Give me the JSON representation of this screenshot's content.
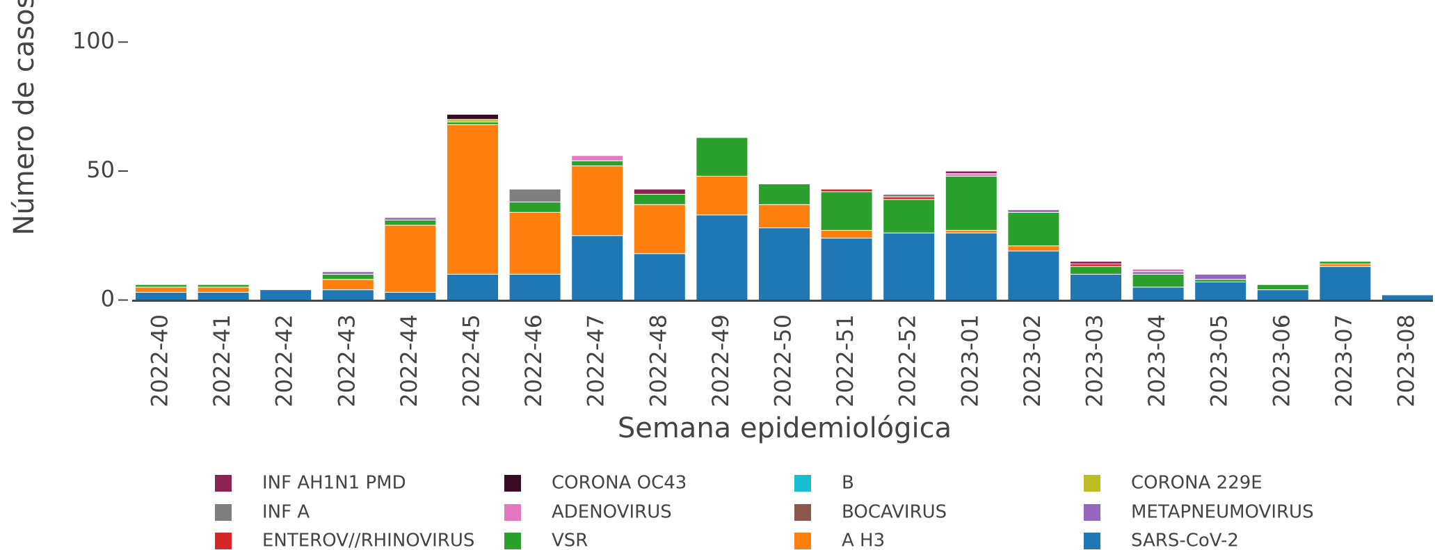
{
  "chart_data": {
    "type": "bar",
    "stacked": true,
    "x_label": "Semana epidemiológica",
    "y_label": "Número de casos",
    "categories": [
      "2022-40",
      "2022-41",
      "2022-42",
      "2022-43",
      "2022-44",
      "2022-45",
      "2022-46",
      "2022-47",
      "2022-48",
      "2022-49",
      "2022-50",
      "2022-51",
      "2022-52",
      "2023-01",
      "2023-02",
      "2023-03",
      "2023-04",
      "2023-05",
      "2023-06",
      "2023-07",
      "2023-08"
    ],
    "ylim": [
      0,
      100
    ],
    "yticks": [
      0,
      50,
      100
    ],
    "series": [
      {
        "name": "INF AH1N1 PMD",
        "color": "#8b2252",
        "values": [
          0,
          0,
          0,
          0,
          0,
          0,
          0,
          0,
          2,
          0,
          0,
          0,
          0,
          1,
          0,
          1,
          0,
          0,
          0,
          0,
          0
        ]
      },
      {
        "name": "CORONA OC43",
        "color": "#3b0a25",
        "values": [
          0,
          0,
          0,
          0,
          0,
          2,
          0,
          0,
          0,
          0,
          0,
          0,
          0,
          0,
          0,
          0,
          0,
          0,
          0,
          0,
          0
        ]
      },
      {
        "name": "B",
        "color": "#17becf",
        "values": [
          0,
          0,
          0,
          0,
          0,
          0,
          0,
          0,
          0,
          0,
          0,
          0,
          0,
          0,
          0,
          0,
          0,
          0,
          0,
          0,
          0
        ]
      },
      {
        "name": "CORONA 229E",
        "color": "#bcbd22",
        "values": [
          0,
          0,
          0,
          0,
          0,
          1,
          0,
          0,
          0,
          0,
          0,
          0,
          0,
          0,
          0,
          0,
          0,
          0,
          0,
          0,
          0
        ]
      },
      {
        "name": "INF A",
        "color": "#7f7f7f",
        "values": [
          0,
          0,
          0,
          0,
          0,
          0,
          5,
          0,
          0,
          0,
          0,
          0,
          1,
          0,
          0,
          0,
          0,
          0,
          0,
          0,
          0
        ]
      },
      {
        "name": "ADENOVIRUS",
        "color": "#e377c2",
        "values": [
          0,
          0,
          0,
          0,
          0,
          0,
          0,
          2,
          0,
          0,
          0,
          0,
          0,
          1,
          0,
          0,
          1,
          0,
          0,
          0,
          0
        ]
      },
      {
        "name": "BOCAVIRUS",
        "color": "#8c564b",
        "values": [
          0,
          0,
          0,
          0,
          0,
          0,
          0,
          0,
          0,
          0,
          0,
          0,
          0,
          0,
          0,
          0,
          0,
          0,
          0,
          0,
          0
        ]
      },
      {
        "name": "METAPNEUMOVIRUS",
        "color": "#9467bd",
        "values": [
          0,
          0,
          0,
          1,
          1,
          0,
          0,
          0,
          0,
          0,
          0,
          0,
          0,
          0,
          1,
          0,
          1,
          2,
          0,
          0,
          0
        ]
      },
      {
        "name": "ENTEROV//RHINOVIRUS",
        "color": "#d62728",
        "values": [
          0,
          0,
          0,
          0,
          0,
          0,
          0,
          0,
          0,
          0,
          0,
          1,
          1,
          0,
          0,
          1,
          0,
          0,
          0,
          0,
          0
        ]
      },
      {
        "name": "VSR",
        "color": "#2ca02c",
        "values": [
          1,
          1,
          0,
          2,
          2,
          1,
          4,
          2,
          4,
          15,
          8,
          15,
          13,
          21,
          13,
          3,
          5,
          1,
          2,
          1,
          0
        ]
      },
      {
        "name": "A H3",
        "color": "#ff7f0e",
        "values": [
          2,
          2,
          0,
          4,
          26,
          58,
          24,
          27,
          19,
          15,
          9,
          3,
          0,
          1,
          2,
          0,
          0,
          0,
          0,
          1,
          0
        ]
      },
      {
        "name": "SARS-CoV-2",
        "color": "#1f77b4",
        "values": [
          3,
          3,
          4,
          4,
          3,
          10,
          10,
          25,
          18,
          33,
          28,
          24,
          26,
          26,
          19,
          10,
          5,
          7,
          4,
          13,
          2
        ]
      }
    ]
  }
}
